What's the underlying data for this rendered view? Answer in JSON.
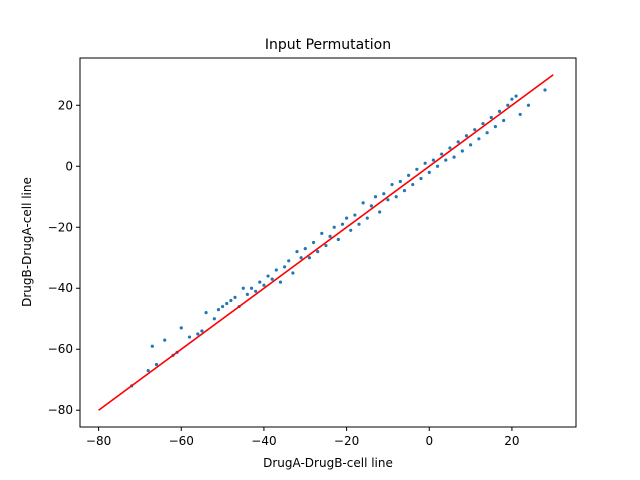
{
  "chart_data": {
    "type": "scatter",
    "title": "Input Permutation",
    "xlabel": "DrugA-DrugB-cell line",
    "ylabel": "DrugB-DrugA-cell line",
    "xlim": [
      -84.5,
      35.5
    ],
    "ylim": [
      -85.5,
      35.5
    ],
    "xticks": [
      -80,
      -60,
      -40,
      -20,
      0,
      20
    ],
    "yticks": [
      -80,
      -60,
      -40,
      -20,
      0,
      20
    ],
    "xtick_labels": [
      "−80",
      "−60",
      "−40",
      "−20",
      "0",
      "20"
    ],
    "ytick_labels": [
      "−80",
      "−60",
      "−40",
      "−20",
      "0",
      "20"
    ],
    "grid": false,
    "legend": "none",
    "colors": {
      "points": "#1f77b4",
      "line": "#ff0000",
      "axes": "#000000"
    },
    "reference_line": {
      "x": [
        -80,
        30
      ],
      "y": [
        -80,
        30
      ]
    },
    "points": [
      [
        -72,
        -72
      ],
      [
        -68,
        -67
      ],
      [
        -67,
        -59
      ],
      [
        -66,
        -65
      ],
      [
        -64,
        -57
      ],
      [
        -62,
        -62
      ],
      [
        -61,
        -61
      ],
      [
        -60,
        -53
      ],
      [
        -58,
        -56
      ],
      [
        -56,
        -55
      ],
      [
        -55,
        -54
      ],
      [
        -54,
        -48
      ],
      [
        -52,
        -50
      ],
      [
        -51,
        -47
      ],
      [
        -50,
        -46
      ],
      [
        -49,
        -45
      ],
      [
        -48,
        -44
      ],
      [
        -47,
        -43
      ],
      [
        -46,
        -46
      ],
      [
        -45,
        -40
      ],
      [
        -44,
        -42
      ],
      [
        -43,
        -40
      ],
      [
        -42,
        -41
      ],
      [
        -41,
        -38
      ],
      [
        -40,
        -39
      ],
      [
        -39,
        -36
      ],
      [
        -38,
        -37
      ],
      [
        -37,
        -34
      ],
      [
        -36,
        -38
      ],
      [
        -35,
        -33
      ],
      [
        -34,
        -31
      ],
      [
        -33,
        -35
      ],
      [
        -32,
        -28
      ],
      [
        -31,
        -30
      ],
      [
        -30,
        -27
      ],
      [
        -29,
        -30
      ],
      [
        -28,
        -25
      ],
      [
        -27,
        -28
      ],
      [
        -26,
        -22
      ],
      [
        -25,
        -26
      ],
      [
        -24,
        -23
      ],
      [
        -23,
        -20
      ],
      [
        -22,
        -24
      ],
      [
        -21,
        -19
      ],
      [
        -20,
        -17
      ],
      [
        -19,
        -21
      ],
      [
        -18,
        -16
      ],
      [
        -17,
        -19
      ],
      [
        -16,
        -12
      ],
      [
        -15,
        -17
      ],
      [
        -14,
        -13
      ],
      [
        -13,
        -10
      ],
      [
        -12,
        -15
      ],
      [
        -11,
        -9
      ],
      [
        -10,
        -11
      ],
      [
        -9,
        -6
      ],
      [
        -8,
        -10
      ],
      [
        -7,
        -5
      ],
      [
        -6,
        -8
      ],
      [
        -5,
        -3
      ],
      [
        -4,
        -6
      ],
      [
        -3,
        -1
      ],
      [
        -2,
        -4
      ],
      [
        -1,
        1
      ],
      [
        0,
        -2
      ],
      [
        1,
        2
      ],
      [
        2,
        0
      ],
      [
        3,
        4
      ],
      [
        4,
        2
      ],
      [
        5,
        6
      ],
      [
        6,
        3
      ],
      [
        7,
        8
      ],
      [
        8,
        5
      ],
      [
        9,
        10
      ],
      [
        10,
        7
      ],
      [
        11,
        12
      ],
      [
        12,
        9
      ],
      [
        13,
        14
      ],
      [
        14,
        11
      ],
      [
        15,
        16
      ],
      [
        16,
        13
      ],
      [
        17,
        18
      ],
      [
        18,
        15
      ],
      [
        19,
        20
      ],
      [
        20,
        22
      ],
      [
        21,
        23
      ],
      [
        22,
        17
      ],
      [
        24,
        20
      ],
      [
        28,
        25
      ]
    ]
  }
}
